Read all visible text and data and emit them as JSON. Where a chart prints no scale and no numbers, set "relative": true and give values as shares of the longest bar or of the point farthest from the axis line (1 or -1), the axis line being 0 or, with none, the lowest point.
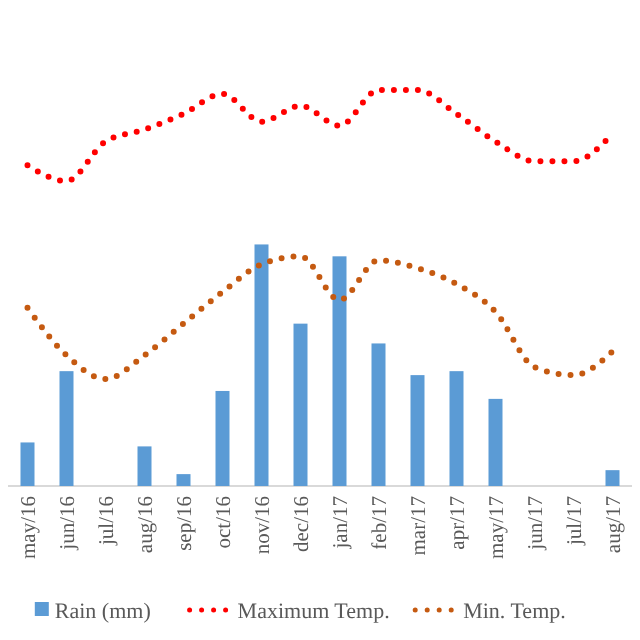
{
  "chart_data": {
    "type": "bar",
    "relative": true,
    "legend": "bottom",
    "categories": [
      "may/16",
      "jun/16",
      "jul/16",
      "aug/16",
      "sep/16",
      "oct/16",
      "nov/16",
      "dec/16",
      "jan/17",
      "feb/17",
      "mar/17",
      "apr/17",
      "may/17",
      "jun/17",
      "jul/17",
      "aug/17"
    ],
    "series": [
      {
        "name": "Rain (mm)",
        "color": "#5b9bd5",
        "values": [
          0.11,
          0.29,
          0,
          0.1,
          0.03,
          0.24,
          0.61,
          0.41,
          0.58,
          0.36,
          0.28,
          0.29,
          0.22,
          0,
          0,
          0.04
        ]
      },
      {
        "name": "Maximum Temp.",
        "type": "line",
        "line_style": "dotted",
        "color": "#ff0000",
        "values": [
          0.81,
          0.77,
          0.87,
          0.9,
          0.94,
          0.99,
          0.92,
          0.96,
          0.91,
          1,
          1,
          0.94,
          0.87,
          0.82,
          0.82,
          0.89
        ]
      },
      {
        "name": "Min. Temp.",
        "type": "line",
        "line_style": "dotted",
        "color": "#c55a11",
        "values": [
          0.45,
          0.33,
          0.27,
          0.33,
          0.41,
          0.49,
          0.56,
          0.58,
          0.47,
          0.57,
          0.55,
          0.51,
          0.44,
          0.3,
          0.28,
          0.34
        ]
      }
    ]
  }
}
